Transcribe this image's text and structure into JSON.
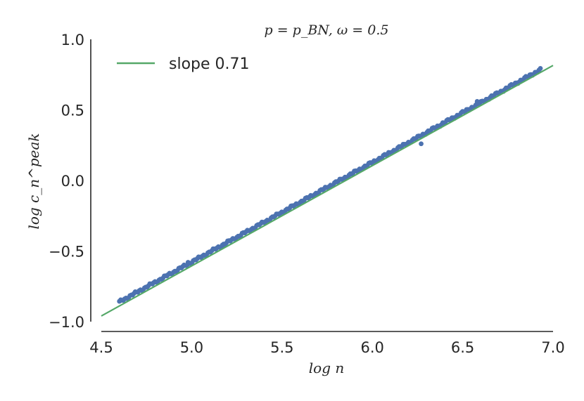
{
  "chart_data": {
    "type": "scatter",
    "title": "p = p_BN, ω = 0.5",
    "xlabel": "log n",
    "ylabel": "log c_n^peak",
    "xlim": [
      4.5,
      7.0
    ],
    "ylim": [
      -1.0,
      1.0
    ],
    "xticks": [
      4.5,
      5.0,
      5.5,
      6.0,
      6.5,
      7.0
    ],
    "yticks": [
      1.0,
      0.5,
      0.0,
      -0.5,
      -1.0
    ],
    "xtick_labels": [
      "4.5",
      "5.0",
      "5.5",
      "6.0",
      "6.5",
      "7.0"
    ],
    "ytick_labels": [
      "1.0",
      "0.5",
      "0.0",
      "−0.5",
      "−1.0"
    ],
    "grid": false,
    "legend": {
      "position": "top-left",
      "entries": [
        "slope 0.71"
      ]
    },
    "series": [
      {
        "type": "scatter",
        "color": "#4C72B0",
        "x_range": [
          4.6,
          6.93
        ],
        "y_start": -0.86,
        "y_end": 0.785,
        "outliers": [
          {
            "x": 4.98,
            "y": -0.58
          },
          {
            "x": 5.17,
            "y": -0.47
          },
          {
            "x": 6.27,
            "y": 0.26
          },
          {
            "x": 6.39,
            "y": 0.41
          },
          {
            "x": 6.58,
            "y": 0.56
          }
        ]
      },
      {
        "name": "slope 0.71",
        "type": "line",
        "color": "#55A868",
        "slope": 0.71,
        "points": [
          {
            "x": 4.5,
            "y": -0.96
          },
          {
            "x": 7.0,
            "y": 0.815
          }
        ]
      }
    ]
  }
}
